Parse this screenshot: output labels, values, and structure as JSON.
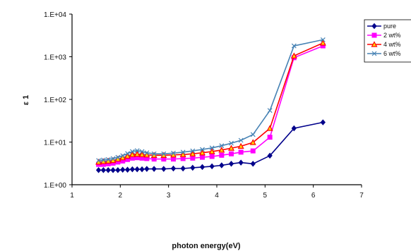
{
  "chart_data": {
    "type": "line",
    "title": "",
    "xlabel": "photon energy(eV)",
    "ylabel": "ε 1",
    "xlim": [
      1,
      7
    ],
    "ylim": [
      1,
      10000
    ],
    "yscale": "log",
    "xticks": [
      "1",
      "2",
      "3",
      "4",
      "5",
      "6",
      "7"
    ],
    "yticks": [
      "1.E+00",
      "1.E+01",
      "1.E+02",
      "1.E+03",
      "1.E+04"
    ],
    "grid": false,
    "legend_position": "top-right",
    "series": [
      {
        "name": "pure",
        "color": "#00008B",
        "marker": "diamond",
        "x": [
          1.55,
          1.65,
          1.75,
          1.85,
          1.95,
          2.05,
          2.15,
          2.25,
          2.35,
          2.45,
          2.55,
          2.7,
          2.9,
          3.1,
          3.3,
          3.5,
          3.7,
          3.9,
          4.1,
          4.3,
          4.5,
          4.75,
          5.1,
          5.6,
          6.2
        ],
        "y": [
          2.2,
          2.2,
          2.2,
          2.2,
          2.2,
          2.25,
          2.25,
          2.3,
          2.3,
          2.3,
          2.35,
          2.35,
          2.35,
          2.4,
          2.4,
          2.5,
          2.6,
          2.7,
          2.85,
          3.1,
          3.3,
          3.1,
          4.8,
          21,
          29
        ]
      },
      {
        "name": "2 wt%",
        "color": "#FF00FF",
        "marker": "square",
        "x": [
          1.55,
          1.65,
          1.75,
          1.85,
          1.95,
          2.05,
          2.15,
          2.25,
          2.35,
          2.45,
          2.55,
          2.7,
          2.9,
          3.1,
          3.3,
          3.5,
          3.7,
          3.9,
          4.1,
          4.3,
          4.5,
          4.75,
          5.1,
          5.6,
          6.2
        ],
        "y": [
          3.0,
          3.0,
          3.1,
          3.2,
          3.4,
          3.6,
          3.9,
          4.2,
          4.3,
          4.2,
          4.1,
          4.0,
          4.0,
          4.0,
          4.1,
          4.2,
          4.4,
          4.6,
          4.9,
          5.3,
          5.8,
          6.2,
          13,
          950,
          1800
        ]
      },
      {
        "name": "4 wt%",
        "color": "#FF0000",
        "marker": "triangle",
        "x": [
          1.55,
          1.65,
          1.75,
          1.85,
          1.95,
          2.05,
          2.15,
          2.25,
          2.35,
          2.45,
          2.55,
          2.7,
          2.9,
          3.1,
          3.3,
          3.5,
          3.7,
          3.9,
          4.1,
          4.3,
          4.5,
          4.75,
          5.1,
          5.6,
          6.2
        ],
        "y": [
          3.4,
          3.5,
          3.6,
          3.7,
          4.0,
          4.3,
          4.7,
          5.1,
          5.2,
          5.1,
          5.0,
          4.9,
          4.9,
          5.0,
          5.1,
          5.3,
          5.6,
          6.0,
          6.5,
          7.2,
          8.0,
          9.8,
          21,
          1050,
          2100
        ]
      },
      {
        "name": "6 wt%",
        "color": "#4682B4",
        "marker": "x",
        "x": [
          1.55,
          1.65,
          1.75,
          1.85,
          1.95,
          2.05,
          2.15,
          2.25,
          2.35,
          2.45,
          2.55,
          2.7,
          2.9,
          3.1,
          3.3,
          3.5,
          3.7,
          3.9,
          4.1,
          4.3,
          4.5,
          4.75,
          5.1,
          5.6,
          6.2
        ],
        "y": [
          3.7,
          3.8,
          3.9,
          4.1,
          4.4,
          4.8,
          5.4,
          6.0,
          6.3,
          6.0,
          5.6,
          5.3,
          5.3,
          5.5,
          5.8,
          6.2,
          6.7,
          7.3,
          8.2,
          9.4,
          11,
          15,
          55,
          1800,
          2500
        ]
      }
    ]
  }
}
